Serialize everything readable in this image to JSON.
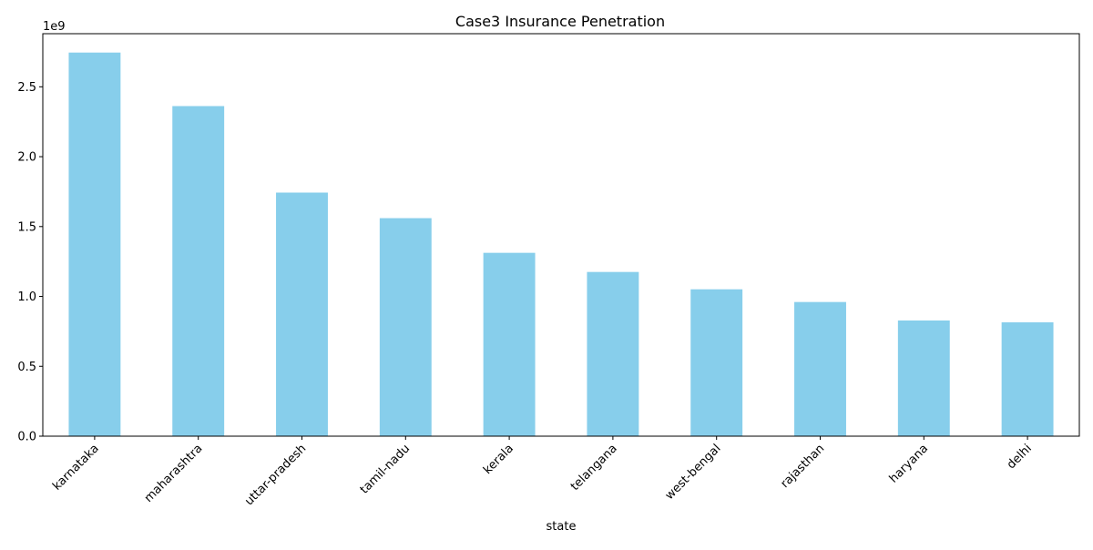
{
  "chart_data": {
    "type": "bar",
    "title": "Case3 Insurance Penetration",
    "xlabel": "state",
    "ylabel": "",
    "offset_label": "1e9",
    "categories": [
      "karnataka",
      "maharashtra",
      "uttar-pradesh",
      "tamil-nadu",
      "kerala",
      "telangana",
      "west-bengal",
      "rajasthan",
      "haryana",
      "delhi"
    ],
    "values": [
      2745000000,
      2362000000,
      1743000000,
      1560000000,
      1312000000,
      1175000000,
      1051000000,
      960000000,
      828000000,
      815000000
    ],
    "ylim": [
      0,
      2880000000
    ],
    "yticks": [
      0,
      500000000,
      1000000000,
      1500000000,
      2000000000,
      2500000000
    ],
    "ytick_labels": [
      "0.0",
      "0.5",
      "1.0",
      "1.5",
      "2.0",
      "2.5"
    ],
    "bar_color": "#87ceeb",
    "grid": false,
    "legend": "none"
  }
}
